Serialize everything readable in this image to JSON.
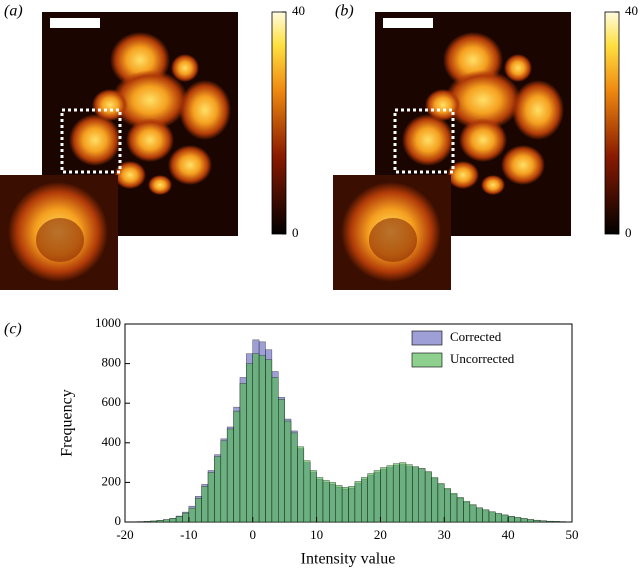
{
  "images": [
    {
      "label": "(a)",
      "colorbar_lim": [
        0,
        40
      ],
      "colorbar_ticks": [
        0,
        40
      ]
    },
    {
      "label": "(b)",
      "colorbar_lim": [
        0,
        40
      ],
      "colorbar_ticks": [
        0,
        40
      ]
    }
  ],
  "chart_data": {
    "type": "histogram",
    "label": "(c)",
    "xlabel": "Intensity value",
    "ylabel": "Frequency",
    "bins": [
      -20,
      -19,
      -18,
      -17,
      -16,
      -15,
      -14,
      -13,
      -12,
      -11,
      -10,
      -9,
      -8,
      -7,
      -6,
      -5,
      -4,
      -3,
      -2,
      -1,
      0,
      1,
      2,
      3,
      4,
      5,
      6,
      7,
      8,
      9,
      10,
      11,
      12,
      13,
      14,
      15,
      16,
      17,
      18,
      19,
      20,
      21,
      22,
      23,
      24,
      25,
      26,
      27,
      28,
      29,
      30,
      31,
      32,
      33,
      34,
      35,
      36,
      37,
      38,
      39,
      40,
      41,
      42,
      43,
      44,
      45,
      46,
      47,
      48,
      49,
      50
    ],
    "series": [
      {
        "name": "Corrected",
        "color": "#6b6bc2",
        "values": [
          0,
          0,
          2,
          3,
          5,
          8,
          12,
          18,
          30,
          50,
          80,
          130,
          190,
          260,
          340,
          420,
          480,
          580,
          730,
          850,
          920,
          910,
          870,
          760,
          630,
          520,
          460,
          370,
          300,
          250,
          215,
          200,
          190,
          175,
          165,
          170,
          195,
          215,
          235,
          250,
          265,
          275,
          285,
          290,
          280,
          275,
          270,
          250,
          220,
          190,
          165,
          140,
          120,
          100,
          85,
          70,
          60,
          50,
          42,
          35,
          28,
          22,
          17,
          12,
          9,
          6,
          4,
          3,
          2,
          1
        ]
      },
      {
        "name": "Uncorrected",
        "color": "#52b852",
        "values": [
          0,
          0,
          2,
          3,
          5,
          8,
          12,
          18,
          28,
          45,
          70,
          120,
          180,
          250,
          330,
          410,
          470,
          560,
          700,
          800,
          850,
          840,
          820,
          730,
          620,
          510,
          450,
          380,
          310,
          260,
          225,
          210,
          200,
          185,
          175,
          180,
          205,
          225,
          245,
          260,
          275,
          285,
          295,
          300,
          290,
          280,
          270,
          255,
          225,
          195,
          170,
          145,
          125,
          105,
          88,
          72,
          62,
          52,
          43,
          36,
          29,
          23,
          18,
          13,
          9,
          6,
          4,
          3,
          2,
          1
        ]
      }
    ],
    "alpha": 0.65,
    "xlim": [
      -20,
      50
    ],
    "xticks": [
      -20,
      -10,
      0,
      10,
      20,
      30,
      40,
      50
    ],
    "ylim": [
      0,
      1000
    ],
    "yticks": [
      0,
      200,
      400,
      600,
      800,
      1000
    ],
    "legend": "upper right"
  }
}
